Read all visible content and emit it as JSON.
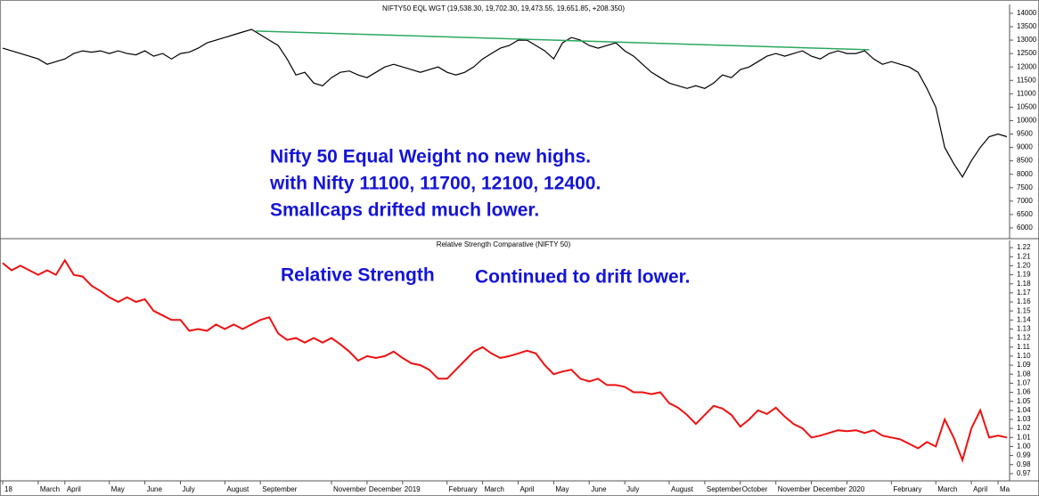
{
  "chart_data": [
    {
      "type": "line",
      "title": "NIFTY50 EQL WGT (19,538.30, 19,702.30, 19,473.55, 19,651.85, +208.350)",
      "annotations": [
        "Nifty 50 Equal Weight no new highs.",
        "with Nifty 11100, 11700, 12100, 12400.",
        "Smallcaps drifted much lower."
      ],
      "xlim": [
        0,
        113
      ],
      "ylim": [
        5600,
        14330
      ],
      "yticks": [
        6000,
        6500,
        7000,
        7500,
        8000,
        8500,
        9000,
        9500,
        10000,
        10500,
        11000,
        11500,
        12000,
        12500,
        13000,
        13500,
        14000
      ],
      "series": [
        {
          "color": "#000000",
          "values": [
            12700,
            12600,
            12500,
            12400,
            12300,
            12100,
            12200,
            12300,
            12500,
            12600,
            12550,
            12600,
            12500,
            12600,
            12500,
            12450,
            12600,
            12400,
            12500,
            12300,
            12500,
            12550,
            12700,
            12900,
            13000,
            13100,
            13200,
            13300,
            13400,
            13200,
            13000,
            12800,
            12300,
            11700,
            11800,
            11400,
            11300,
            11600,
            11800,
            11850,
            11700,
            11600,
            11800,
            12000,
            12100,
            12000,
            11900,
            11800,
            11900,
            12000,
            11800,
            11700,
            11800,
            12000,
            12300,
            12500,
            12700,
            12800,
            13000,
            13000,
            12800,
            12600,
            12300,
            12900,
            13100,
            13000,
            12800,
            12700,
            12800,
            12900,
            12600,
            12400,
            12100,
            11800,
            11600,
            11400,
            11300,
            11200,
            11300,
            11200,
            11400,
            11700,
            11600,
            11900,
            12000,
            12200,
            12400,
            12500,
            12400,
            12500,
            12600,
            12400,
            12300,
            12500,
            12600,
            12500,
            12500,
            12600,
            12300,
            12100,
            12200,
            12100,
            12000,
            11800,
            11200,
            10500,
            9000,
            8400,
            7900,
            8500,
            9000,
            9400,
            9500,
            9400
          ]
        }
      ],
      "trendline": {
        "color": "#2aa860",
        "x": [
          28.5,
          97.5
        ],
        "values": [
          13340,
          12640
        ]
      }
    },
    {
      "type": "line",
      "title": "Relative Strength Comparative (NIFTY 50)",
      "annotations": [
        "Relative Strength",
        "Continued to drift lower."
      ],
      "xlim": [
        0,
        113
      ],
      "ylim": [
        0.962,
        1.228
      ],
      "yticks": [
        0.97,
        0.98,
        0.99,
        {
          "value": 1,
          "label": "1.00"
        },
        1.01,
        1.02,
        1.03,
        1.04,
        1.05,
        1.06,
        1.07,
        1.08,
        1.09,
        {
          "value": 1.1,
          "label": "1.10"
        },
        1.11,
        1.12,
        1.13,
        1.14,
        1.15,
        1.16,
        1.17,
        1.18,
        1.19,
        {
          "value": 1.2,
          "label": "1.20"
        },
        1.21,
        1.22
      ],
      "xticks": [
        {
          "value": 0,
          "label": "18"
        },
        {
          "value": 4,
          "label": "March"
        },
        {
          "value": 7,
          "label": "April"
        },
        {
          "value": 12,
          "label": "May"
        },
        {
          "value": 16,
          "label": "June"
        },
        {
          "value": 20,
          "label": "July"
        },
        {
          "value": 25,
          "label": "August"
        },
        {
          "value": 29,
          "label": "September"
        },
        {
          "value": 37,
          "label": "November"
        },
        {
          "value": 41,
          "label": "December"
        },
        {
          "value": 45,
          "label": "2019"
        },
        {
          "value": 50,
          "label": "February"
        },
        {
          "value": 54,
          "label": "March"
        },
        {
          "value": 58,
          "label": "April"
        },
        {
          "value": 62,
          "label": "May"
        },
        {
          "value": 66,
          "label": "June"
        },
        {
          "value": 70,
          "label": "July"
        },
        {
          "value": 75,
          "label": "August"
        },
        {
          "value": 79,
          "label": "September"
        },
        {
          "value": 83,
          "label": "October"
        },
        {
          "value": 87,
          "label": "November"
        },
        {
          "value": 91,
          "label": "December"
        },
        {
          "value": 95,
          "label": "2020"
        },
        {
          "value": 100,
          "label": "February"
        },
        {
          "value": 105,
          "label": "March"
        },
        {
          "value": 109,
          "label": "April"
        },
        {
          "value": 112,
          "label": "Ma"
        }
      ],
      "series": [
        {
          "color": "#ee1111",
          "values": [
            1.203,
            1.195,
            1.2,
            1.195,
            1.19,
            1.195,
            1.19,
            1.206,
            1.19,
            1.188,
            1.178,
            1.172,
            1.165,
            1.16,
            1.165,
            1.16,
            1.163,
            1.15,
            1.145,
            1.14,
            1.14,
            1.128,
            1.13,
            1.128,
            1.135,
            1.13,
            1.135,
            1.13,
            1.135,
            1.14,
            1.143,
            1.125,
            1.118,
            1.12,
            1.115,
            1.12,
            1.115,
            1.12,
            1.113,
            1.105,
            1.095,
            1.1,
            1.098,
            1.1,
            1.105,
            1.098,
            1.092,
            1.09,
            1.085,
            1.075,
            1.075,
            1.085,
            1.095,
            1.105,
            1.11,
            1.103,
            1.098,
            1.1,
            1.103,
            1.106,
            1.103,
            1.09,
            1.08,
            1.083,
            1.085,
            1.075,
            1.072,
            1.075,
            1.068,
            1.068,
            1.066,
            1.06,
            1.06,
            1.058,
            1.06,
            1.048,
            1.043,
            1.035,
            1.025,
            1.035,
            1.045,
            1.042,
            1.035,
            1.022,
            1.03,
            1.04,
            1.036,
            1.043,
            1.033,
            1.025,
            1.02,
            1.01,
            1.012,
            1.015,
            1.018,
            1.017,
            1.018,
            1.015,
            1.018,
            1.012,
            1.01,
            1.008,
            1.003,
            0.998,
            1.005,
            1.0,
            1.03,
            1.01,
            0.985,
            1.02,
            1.04,
            1.01,
            1.012,
            1.01
          ]
        }
      ]
    }
  ]
}
